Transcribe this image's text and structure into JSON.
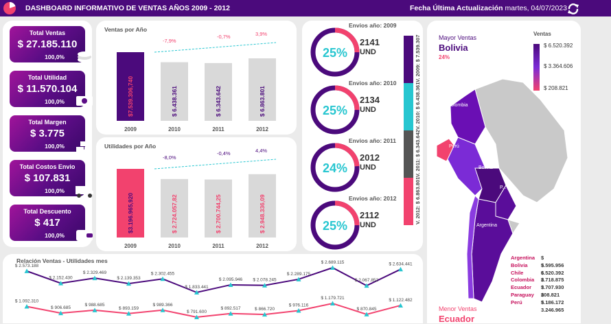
{
  "header": {
    "title": "DASHBOARD INFORMATIVO DE VENTAS AÑOS 2009 - 2012",
    "update_label": "Fecha Última Actualización",
    "update_date": "martes, 04/07/2023"
  },
  "kpis": [
    {
      "label": "Total Ventas",
      "value": "$ 27.185.110",
      "pct": "100,0%",
      "icon": "coins-icon"
    },
    {
      "label": "Total Utilidad",
      "value": "$ 11.570.104",
      "pct": "100,0%",
      "icon": "banknote-icon"
    },
    {
      "label": "Total Margen",
      "value": "$ 3.775",
      "pct": "100,0%",
      "icon": "gold-bars-icon"
    },
    {
      "label": "Total Costos Envio",
      "value": "$ 107.831",
      "pct": "100,0%",
      "icon": "truck-icon"
    },
    {
      "label": "Total Descuento",
      "value": "$ 417",
      "pct": "100,0%",
      "icon": "wallet-icon"
    }
  ],
  "chart_data": [
    {
      "type": "bar",
      "title": "Ventas por Año",
      "categories": [
        "2009",
        "2010",
        "2011",
        "2012"
      ],
      "values": [
        7539306.74,
        6438361,
        6343642,
        6863801
      ],
      "labels": [
        "$7.539.306,740",
        "$ 6.438.361",
        "$ 6.343.642",
        "$ 6.863.801"
      ],
      "growth": [
        "-7,9%",
        "-0,7%",
        "3,9%"
      ],
      "colors": [
        "#4b0a7c",
        "#d9d9d9",
        "#d9d9d9",
        "#d9d9d9"
      ]
    },
    {
      "type": "bar",
      "title": "Utilidades por Año",
      "categories": [
        "2009",
        "2010",
        "2011",
        "2012"
      ],
      "values": [
        3196965.92,
        2724057.82,
        2700744.25,
        2948336.09
      ],
      "labels": [
        "$3.196.965,920",
        "$ 2.724.057,82",
        "$ 2.700.744,25",
        "$ 2.948.336,09"
      ],
      "growth": [
        "-8,0%",
        "-0,4%",
        "4,4%"
      ],
      "colors": [
        "#f2426e",
        "#d9d9d9",
        "#d9d9d9",
        "#d9d9d9"
      ]
    },
    {
      "type": "line",
      "title": "Relación Ventas - Utilidades mes",
      "series": [
        {
          "values": [
            2573188,
            2152430,
            2329469,
            2139353,
            2302455,
            1833441,
            2095946,
            2078245,
            2289175,
            2689115,
            2067852,
            2634441
          ],
          "labels": [
            "$ 2.573.188",
            "$ 2.152.430",
            "$ 2.329.469",
            "$ 2.139.353",
            "$ 2.302.455",
            "$ 1.833.441",
            "$ 2.095.946",
            "$ 2.078.245",
            "$ 2.289.175",
            "$ 2.689.115",
            "$ 2.067.852",
            "$ 2.634.441"
          ],
          "color": "#4b0a7c"
        },
        {
          "values": [
            1092310,
            906685,
            988685,
            893159,
            989366,
            791600,
            892517,
            866720,
            976116,
            1179721,
            870845,
            1122482
          ],
          "labels": [
            "$ 1.092.310",
            "$ 906.685",
            "$ 988.685",
            "$ 893.159",
            "$ 989.366",
            "$ 791.600",
            "$ 892.517",
            "$ 866.720",
            "$ 976.116",
            "$ 1.179.721",
            "$ 870.845",
            "$ 1.122.482"
          ],
          "color": "#f2426e"
        }
      ]
    }
  ],
  "donuts": [
    {
      "title": "Envios año: 2009",
      "pct": "25%",
      "pct_value": 25,
      "count": "2141",
      "unit": "UND"
    },
    {
      "title": "Envios año: 2010",
      "pct": "25%",
      "pct_value": 25,
      "count": "2134",
      "unit": "UND"
    },
    {
      "title": "Envios año: 2011",
      "pct": "24%",
      "pct_value": 24,
      "count": "2012",
      "unit": "UND"
    },
    {
      "title": "Envios año: 2012",
      "pct": "25%",
      "pct_value": 25,
      "count": "2112",
      "unit": "UND"
    }
  ],
  "strips": [
    {
      "label": "V. 2009: $ 7.539.307",
      "color": "#4b0a7c"
    },
    {
      "label": "V. 2010: $ 6.438.361",
      "color": "#27c6d0"
    },
    {
      "label": "V. 2011: $ 6.343.642",
      "color": "#555555"
    },
    {
      "label": "V. 2012: $ 6.863.801",
      "color": "#f2426e"
    }
  ],
  "map": {
    "top_title": "Mayor Ventas",
    "top_country": "Bolivia",
    "top_pct": "24%",
    "bottom_title": "Menor Ventas",
    "bottom_country": "Ecuador",
    "legend_title": "Ventas",
    "legend_max": "$ 6.520.392",
    "legend_mid": "$ 3.364.606",
    "legend_min": "$ 208.821",
    "country_labels": {
      "colombia": "Colombia",
      "ecuador": "E...",
      "peru": "Perú",
      "bolivia": "Bolivia",
      "paraguay": "P...",
      "argentina": "Argentina"
    },
    "countries": [
      {
        "name": "Argentina",
        "value": "$ 5.595.956"
      },
      {
        "name": "Bolivia",
        "value": "$ 6.520.392"
      },
      {
        "name": "Chile",
        "value": "$ 2.718.875"
      },
      {
        "name": "Colombia",
        "value": "$ 3.707.930"
      },
      {
        "name": "Ecuador",
        "value": "$ 208.821"
      },
      {
        "name": "Paraguay",
        "value": "$ 5.186.172"
      },
      {
        "name": "Perú",
        "value": "$ 3.246.965"
      }
    ]
  }
}
